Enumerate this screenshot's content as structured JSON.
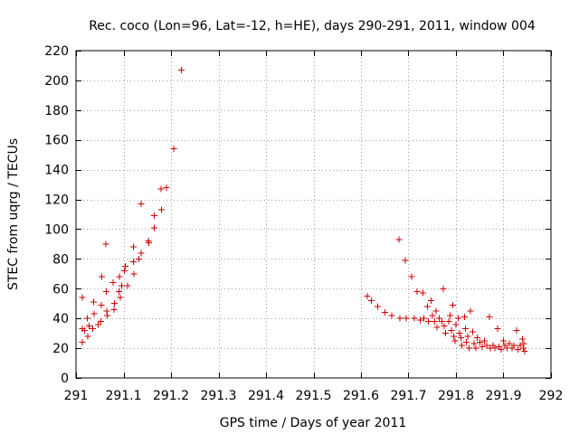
{
  "chart_data": {
    "type": "scatter",
    "title": "Rec. coco (Lon=96, Lat=-12, h=HE), days 290-291, 2011, window 004",
    "xlabel": "GPS time / Days of year 2011",
    "ylabel": "STEC from uqrg / TECUs",
    "xlim": [
      291,
      292
    ],
    "ylim": [
      0,
      220
    ],
    "x_ticks": [
      291,
      291.1,
      291.2,
      291.3,
      291.4,
      291.5,
      291.6,
      291.7,
      291.8,
      291.9,
      292
    ],
    "x_tick_labels": [
      "291",
      "291.1",
      "291.2",
      "291.3",
      "291.4",
      "291.5",
      "291.6",
      "291.7",
      "291.8",
      "291.9",
      "292"
    ],
    "y_ticks": [
      0,
      20,
      40,
      60,
      80,
      100,
      120,
      140,
      160,
      180,
      200,
      220
    ],
    "y_tick_labels": [
      "0",
      "20",
      "40",
      "60",
      "80",
      "100",
      "120",
      "140",
      "160",
      "180",
      "200",
      "220"
    ],
    "grid": true,
    "marker": "+",
    "color": "#cc0000",
    "series": [
      {
        "name": "STEC",
        "points": [
          [
            291.013,
            54
          ],
          [
            291.013,
            33
          ],
          [
            291.013,
            24
          ],
          [
            291.018,
            32
          ],
          [
            291.024,
            40
          ],
          [
            291.025,
            28
          ],
          [
            291.028,
            35
          ],
          [
            291.035,
            33
          ],
          [
            291.037,
            51
          ],
          [
            291.038,
            43
          ],
          [
            291.047,
            36
          ],
          [
            291.052,
            38
          ],
          [
            291.053,
            49
          ],
          [
            291.054,
            68
          ],
          [
            291.063,
            90
          ],
          [
            291.064,
            58
          ],
          [
            291.065,
            45
          ],
          [
            291.066,
            42
          ],
          [
            291.078,
            64
          ],
          [
            291.08,
            46
          ],
          [
            291.081,
            50
          ],
          [
            291.09,
            58
          ],
          [
            291.091,
            68
          ],
          [
            291.093,
            54
          ],
          [
            291.096,
            62
          ],
          [
            291.102,
            72
          ],
          [
            291.104,
            75
          ],
          [
            291.109,
            62
          ],
          [
            291.121,
            88
          ],
          [
            291.121,
            78
          ],
          [
            291.122,
            70
          ],
          [
            291.132,
            80
          ],
          [
            291.137,
            84
          ],
          [
            291.137,
            117
          ],
          [
            291.152,
            92
          ],
          [
            291.153,
            91
          ],
          [
            291.165,
            101
          ],
          [
            291.165,
            109
          ],
          [
            291.179,
            127
          ],
          [
            291.18,
            113
          ],
          [
            291.19,
            128
          ],
          [
            291.206,
            154
          ],
          [
            291.222,
            207
          ],
          [
            291.613,
            55
          ],
          [
            291.622,
            52
          ],
          [
            291.635,
            48
          ],
          [
            291.65,
            44
          ],
          [
            291.665,
            42
          ],
          [
            291.68,
            93
          ],
          [
            291.682,
            40
          ],
          [
            291.693,
            79
          ],
          [
            291.695,
            40
          ],
          [
            291.707,
            68
          ],
          [
            291.712,
            40
          ],
          [
            291.718,
            58
          ],
          [
            291.725,
            39
          ],
          [
            291.73,
            57
          ],
          [
            291.732,
            40
          ],
          [
            291.74,
            48
          ],
          [
            291.742,
            38
          ],
          [
            291.748,
            52
          ],
          [
            291.75,
            42
          ],
          [
            291.755,
            38
          ],
          [
            291.758,
            45
          ],
          [
            291.76,
            34
          ],
          [
            291.765,
            40
          ],
          [
            291.77,
            38
          ],
          [
            291.773,
            60
          ],
          [
            291.775,
            35
          ],
          [
            291.778,
            30
          ],
          [
            291.785,
            38
          ],
          [
            291.788,
            42
          ],
          [
            291.79,
            32
          ],
          [
            291.793,
            49
          ],
          [
            291.795,
            28
          ],
          [
            291.798,
            25
          ],
          [
            291.8,
            36
          ],
          [
            291.805,
            40
          ],
          [
            291.808,
            30
          ],
          [
            291.81,
            27
          ],
          [
            291.812,
            22
          ],
          [
            291.818,
            41
          ],
          [
            291.82,
            33
          ],
          [
            291.822,
            24
          ],
          [
            291.825,
            28
          ],
          [
            291.828,
            20
          ],
          [
            291.83,
            45
          ],
          [
            291.835,
            31
          ],
          [
            291.838,
            23
          ],
          [
            291.842,
            20
          ],
          [
            291.845,
            27
          ],
          [
            291.85,
            24
          ],
          [
            291.855,
            21
          ],
          [
            291.86,
            25
          ],
          [
            291.865,
            22
          ],
          [
            291.87,
            41
          ],
          [
            291.872,
            20
          ],
          [
            291.878,
            22
          ],
          [
            291.882,
            20
          ],
          [
            291.888,
            33
          ],
          [
            291.89,
            21
          ],
          [
            291.895,
            19
          ],
          [
            291.9,
            25
          ],
          [
            291.903,
            22
          ],
          [
            291.908,
            20
          ],
          [
            291.912,
            23
          ],
          [
            291.918,
            20
          ],
          [
            291.922,
            22
          ],
          [
            291.928,
            32
          ],
          [
            291.93,
            19
          ],
          [
            291.935,
            22
          ],
          [
            291.94,
            26
          ],
          [
            291.942,
            20
          ],
          [
            291.943,
            23
          ],
          [
            291.945,
            18
          ]
        ]
      }
    ]
  }
}
